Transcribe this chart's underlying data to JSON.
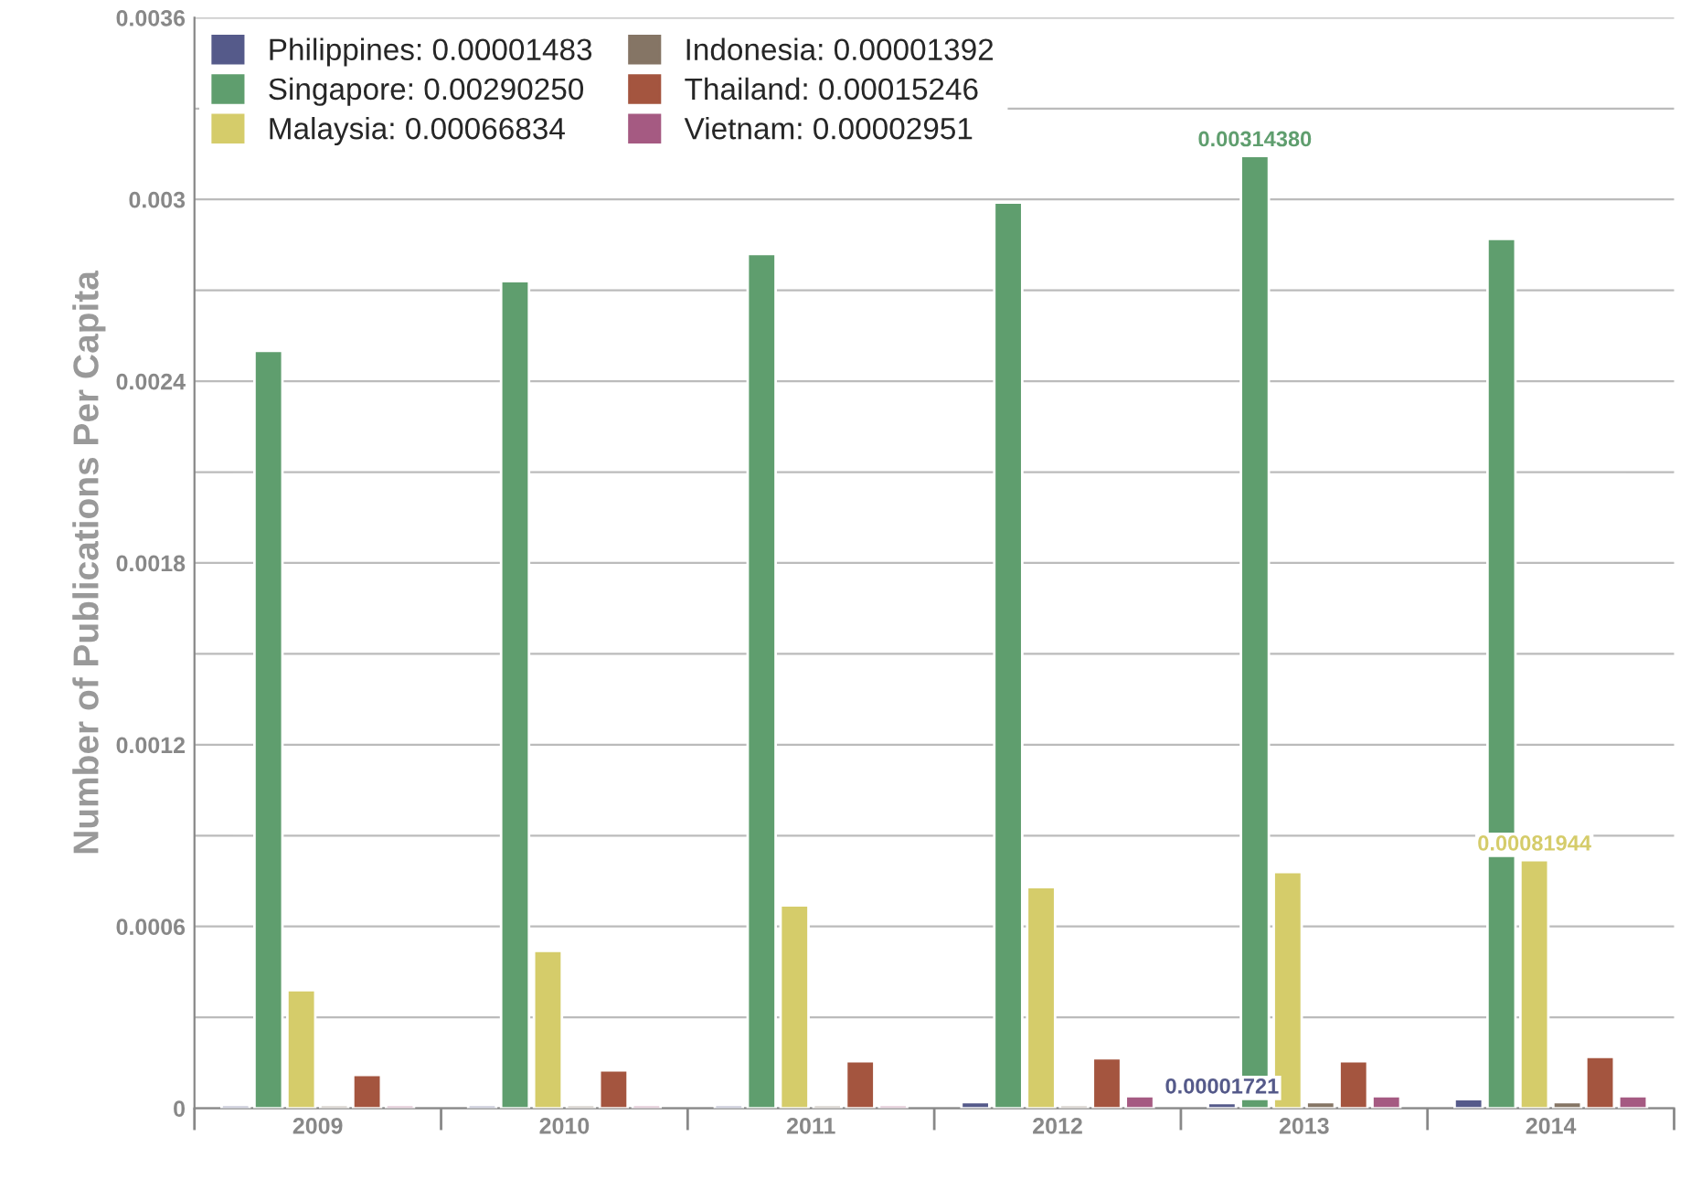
{
  "chart_data": {
    "type": "bar",
    "ylabel": "Number of Publications Per Capita",
    "categories": [
      "2009",
      "2010",
      "2011",
      "2012",
      "2013",
      "2014"
    ],
    "series": [
      {
        "name": "Philippines: 0.00001483",
        "color": "#555a8a",
        "values": [
          1e-05,
          1e-05,
          1e-05,
          2e-05,
          1.721e-05,
          3e-05
        ],
        "value_labels": [
          null,
          null,
          null,
          null,
          "0.00001721",
          null
        ]
      },
      {
        "name": "Singapore: 0.00290250",
        "color": "#5f9e6e",
        "values": [
          0.0025,
          0.00273,
          0.00282,
          0.00299,
          0.0031438,
          0.00287
        ],
        "value_labels": [
          null,
          null,
          null,
          null,
          "0.00314380",
          null
        ]
      },
      {
        "name": "Malaysia: 0.00066834",
        "color": "#d5cc6a",
        "values": [
          0.00039,
          0.00052,
          0.00067,
          0.00073,
          0.00078,
          0.00081944
        ],
        "value_labels": [
          null,
          null,
          null,
          null,
          null,
          "0.00081944"
        ]
      },
      {
        "name": "Indonesia: 0.00001392",
        "color": "#857565",
        "values": [
          1e-05,
          1e-05,
          1e-05,
          1e-05,
          2e-05,
          2e-05
        ]
      },
      {
        "name": "Thailand: 0.00015246",
        "color": "#a4553f",
        "values": [
          0.00011,
          0.000125,
          0.000155,
          0.000165,
          0.000155,
          0.00017
        ]
      },
      {
        "name": "Vietnam: 0.00002951",
        "color": "#a55a82",
        "values": [
          1e-05,
          1e-05,
          1e-05,
          4e-05,
          4e-05,
          4e-05
        ]
      }
    ],
    "ylim": [
      0,
      0.0036
    ],
    "yticks": [
      0,
      {
        "value": 0.0003,
        "label": null
      },
      0.0006,
      {
        "value": 0.0009,
        "label": null
      },
      0.0012,
      {
        "value": 0.0015,
        "label": null
      },
      0.0018,
      {
        "value": 0.0021,
        "label": null
      },
      0.0024,
      {
        "value": 0.0027,
        "label": null
      },
      0.003,
      {
        "value": 0.0033,
        "label": null
      },
      0.0036
    ],
    "grid": "y",
    "legend": "top left"
  }
}
